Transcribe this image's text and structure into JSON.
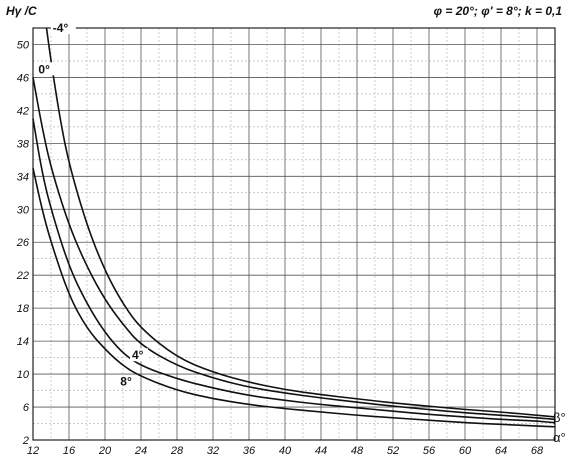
{
  "chart_data": {
    "type": "line",
    "ylabel": "Hγ /C",
    "xlabel": "α°",
    "secondary_label": "β°",
    "params": "φ = 20°; φ' = 8°; k = 0,1",
    "xlim": [
      12,
      70
    ],
    "ylim": [
      2,
      52
    ],
    "x_ticks": [
      "12",
      "16",
      "20",
      "24",
      "28",
      "32",
      "36",
      "40",
      "44",
      "48",
      "52",
      "56",
      "60",
      "64",
      "68"
    ],
    "y_ticks": [
      "2",
      "6",
      "10",
      "14",
      "18",
      "22",
      "26",
      "30",
      "34",
      "38",
      "42",
      "46",
      "50"
    ],
    "grid": true,
    "series": [
      {
        "name": "-4°",
        "x": [
          13.5,
          14,
          15,
          16,
          18,
          20,
          22,
          24,
          28,
          32,
          36,
          40,
          44,
          48,
          52,
          56,
          60,
          64,
          68,
          70
        ],
        "y": [
          52,
          48,
          41,
          35.5,
          28,
          22.5,
          18.5,
          15.5,
          12,
          10.2,
          9,
          8.1,
          7.5,
          7,
          6.5,
          6.1,
          5.7,
          5.4,
          5,
          4.8
        ]
      },
      {
        "name": "0°",
        "x": [
          12,
          13,
          14,
          16,
          18,
          20,
          22,
          24,
          28,
          32,
          36,
          40,
          44,
          48,
          52,
          56,
          60,
          64,
          68,
          70
        ],
        "y": [
          46,
          40,
          35,
          28,
          23,
          19,
          16,
          13.5,
          11,
          9.5,
          8.4,
          7.7,
          7.1,
          6.6,
          6.1,
          5.7,
          5.3,
          5,
          4.7,
          4.5
        ]
      },
      {
        "name": "4°",
        "x": [
          12,
          13,
          14,
          16,
          18,
          20,
          22,
          24,
          28,
          32,
          36,
          40,
          44,
          48,
          52,
          56,
          60,
          64,
          68,
          70
        ],
        "y": [
          41,
          34.5,
          30,
          23,
          18.5,
          15,
          12.5,
          11,
          9.4,
          8.3,
          7.4,
          6.8,
          6.3,
          5.9,
          5.5,
          5.1,
          4.8,
          4.5,
          4.3,
          4.1
        ]
      },
      {
        "name": "8°",
        "x": [
          12,
          13,
          14,
          16,
          18,
          20,
          22,
          24,
          28,
          32,
          36,
          40,
          44,
          48,
          52,
          56,
          60,
          64,
          68,
          70
        ],
        "y": [
          35,
          30,
          26,
          19.5,
          15.5,
          13,
          11,
          9.7,
          8,
          7,
          6.3,
          5.8,
          5.4,
          5,
          4.7,
          4.4,
          4.1,
          3.9,
          3.7,
          3.6
        ]
      }
    ]
  }
}
